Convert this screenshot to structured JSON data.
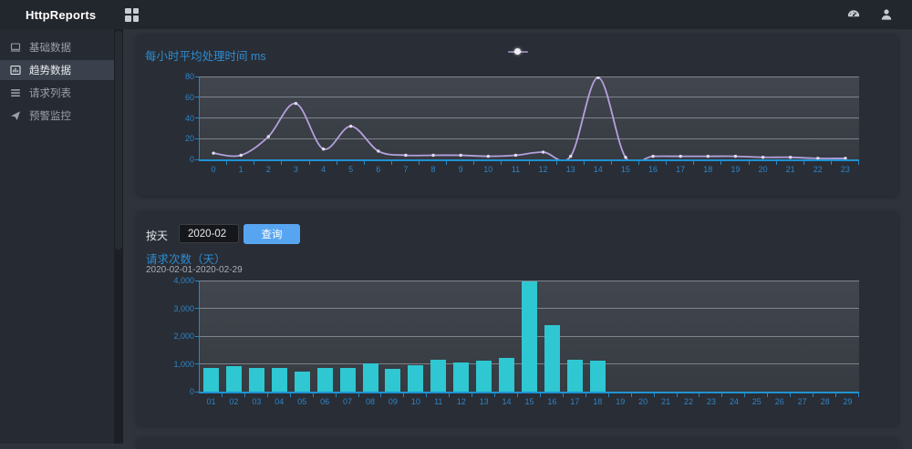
{
  "navbar": {
    "title": "HttpReports",
    "icons": [
      "grid-menu-icon",
      "gauge-icon",
      "user-icon"
    ]
  },
  "sidebar": {
    "items": [
      {
        "label": "基础数据",
        "icon": "monitor-icon",
        "active": false
      },
      {
        "label": "趋势数据",
        "icon": "bar-chart-icon",
        "active": true
      },
      {
        "label": "请求列表",
        "icon": "list-icon",
        "active": false
      },
      {
        "label": "预警监控",
        "icon": "send-icon",
        "active": false
      }
    ]
  },
  "panels": {
    "query": {
      "label": "按天",
      "input_value": "2020-02",
      "button_label": "查询"
    }
  },
  "colors": {
    "accent_blue": "#2d8cf0",
    "title_blue": "#2e8cd0",
    "axis_blue": "#2089cc",
    "line_purple": "#b4a1dd",
    "bar_cyan": "#2ec7d2",
    "button_blue": "#57a5f0",
    "panel_bg": "#292d35",
    "sidebar_bg": "#262a32",
    "navbar_bg": "#22262d"
  },
  "chart_data": [
    {
      "type": "line",
      "title": "每小时平均处理时间  ms",
      "categories": [
        "0",
        "1",
        "2",
        "3",
        "4",
        "5",
        "6",
        "7",
        "8",
        "9",
        "10",
        "11",
        "12",
        "13",
        "14",
        "15",
        "16",
        "17",
        "18",
        "19",
        "20",
        "21",
        "22",
        "23"
      ],
      "values": [
        6,
        4,
        22,
        54,
        10,
        32,
        8,
        4,
        4,
        4,
        3,
        4,
        7,
        3,
        79,
        2,
        3,
        3,
        3,
        3,
        2,
        2,
        1,
        1
      ],
      "ylim": [
        0,
        80
      ],
      "ytick_labels": [
        "0",
        "20",
        "40",
        "60",
        "80"
      ],
      "xlabel": "",
      "ylabel": "",
      "grid": true,
      "legend_position": "top-center",
      "line_color": "#b4a1dd",
      "marker_color": "#e3dcf2"
    },
    {
      "type": "bar",
      "title": "请求次数（天）",
      "subtitle": "2020-02-01-2020-02-29",
      "categories": [
        "01",
        "02",
        "03",
        "04",
        "05",
        "06",
        "07",
        "08",
        "09",
        "10",
        "11",
        "12",
        "13",
        "14",
        "15",
        "16",
        "17",
        "18",
        "19",
        "20",
        "21",
        "22",
        "23",
        "24",
        "25",
        "26",
        "27",
        "28",
        "29"
      ],
      "values": [
        840,
        930,
        860,
        870,
        730,
        850,
        860,
        1020,
        830,
        950,
        1150,
        1040,
        1110,
        1200,
        3980,
        2400,
        1150,
        1120,
        0,
        0,
        0,
        0,
        0,
        0,
        0,
        0,
        0,
        0,
        0
      ],
      "ylim": [
        0,
        4000
      ],
      "ytick_labels": [
        "0",
        "1,000",
        "2,000",
        "3,000",
        "4,000"
      ],
      "xlabel": "",
      "ylabel": "",
      "grid": true,
      "bar_color": "#2ec7d2"
    }
  ]
}
